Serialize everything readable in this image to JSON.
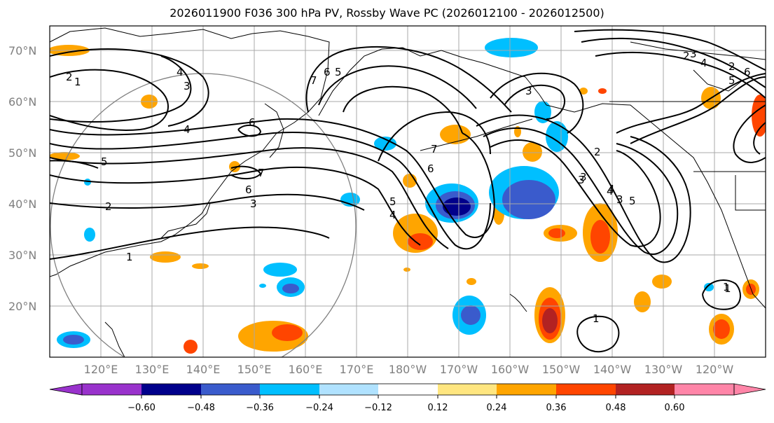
{
  "title": "2026011900 F036 300 hPa PV, Rossby Wave PC (2026012100 - 2026012500)",
  "lat_labels": [
    "70°N",
    "60°N",
    "50°N",
    "40°N",
    "30°N",
    "20°N"
  ],
  "lon_labels": [
    "120°E",
    "130°E",
    "140°E",
    "150°E",
    "160°E",
    "170°E",
    "180°W",
    "170°W",
    "160°W",
    "150°W",
    "140°W",
    "130°W",
    "120°W"
  ],
  "contour_labels": [
    "2",
    "1",
    "4",
    "3",
    "5",
    "6",
    "7",
    "6",
    "5",
    "4",
    "3",
    "2",
    "1",
    "3",
    "7",
    "6",
    "5",
    "4",
    "3",
    "2",
    "6",
    "5",
    "4",
    "3",
    "2",
    "5",
    "4",
    "3",
    "2",
    "1",
    "1",
    "1",
    "4",
    "3",
    "7",
    "6"
  ],
  "colorbar": {
    "tick_labels": [
      "−0.60",
      "−0.48",
      "−0.36",
      "−0.24",
      "−0.12",
      "0.12",
      "0.24",
      "0.36",
      "0.48",
      "0.60"
    ],
    "colors": [
      "#9932CC",
      "#00008B",
      "#3A5BCC",
      "#00BFFF",
      "#B0E2FF",
      "#FFFFFF",
      "#FFE680",
      "#FFA500",
      "#FF4500",
      "#B22222",
      "#FF85A8"
    ]
  }
}
